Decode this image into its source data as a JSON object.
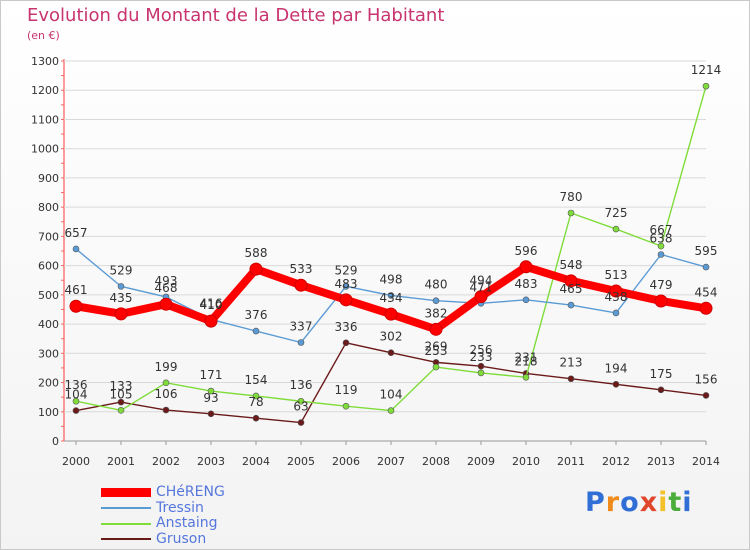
{
  "chart_data": {
    "type": "line",
    "title": "Evolution du Montant de la Dette par Habitant",
    "subtitle": "(en €)",
    "x": [
      "2000",
      "2001",
      "2002",
      "2003",
      "2004",
      "2005",
      "2006",
      "2007",
      "2008",
      "2009",
      "2010",
      "2011",
      "2012",
      "2013",
      "2014"
    ],
    "y_ticks": [
      "0",
      "100",
      "200",
      "300",
      "400",
      "500",
      "600",
      "700",
      "800",
      "900",
      "1000",
      "1100",
      "1200",
      "1300"
    ],
    "ylim": [
      0,
      1300
    ],
    "legend_position": "bottom-left",
    "series": [
      {
        "name": "CHéRENG",
        "color": "#ff0000",
        "values": [
          461,
          435,
          468,
          410,
          588,
          533,
          483,
          434,
          382,
          494,
          596,
          548,
          513,
          479,
          454
        ],
        "labels": [
          "461",
          "435",
          "468",
          "410",
          "588",
          "533",
          "483",
          "434",
          "382",
          "494",
          "596",
          "548",
          "513",
          "479",
          "454"
        ]
      },
      {
        "name": "Tressin",
        "color": "#5b9bd5",
        "values": [
          657,
          529,
          493,
          416,
          376,
          337,
          529,
          498,
          480,
          471,
          483,
          465,
          438,
          638,
          595
        ],
        "labels": [
          "657",
          "529",
          "493",
          "416",
          "376",
          "337",
          "529",
          "498",
          "480",
          "471",
          "483",
          "465",
          "438",
          "638",
          "595"
        ]
      },
      {
        "name": "Anstaing",
        "color": "#7fdc3a",
        "values": [
          136,
          105,
          199,
          171,
          154,
          136,
          119,
          104,
          253,
          233,
          218,
          780,
          725,
          667,
          1214
        ],
        "labels": [
          "136",
          "105",
          "199",
          "171",
          "154",
          "136",
          "119",
          "104",
          "253",
          "233",
          "218",
          "780",
          "725",
          "667",
          "1214"
        ]
      },
      {
        "name": "Gruson",
        "color": "#6b1a1a",
        "values": [
          104,
          133,
          106,
          93,
          78,
          63,
          336,
          302,
          269,
          256,
          231,
          213,
          194,
          175,
          156
        ],
        "labels": [
          "104",
          "133",
          "106",
          "93",
          "78",
          "63",
          "336",
          "302",
          "269",
          "256",
          "231",
          "213",
          "194",
          "175",
          "156"
        ]
      }
    ]
  },
  "brand": {
    "letters": [
      "P",
      "r",
      "o",
      "x",
      "i",
      "t",
      "i"
    ],
    "colors": [
      "#2f6fd6",
      "#f08a1a",
      "#2f6fd6",
      "#e0462a",
      "#f3c12a",
      "#4cae3a",
      "#2f6fd6"
    ]
  }
}
